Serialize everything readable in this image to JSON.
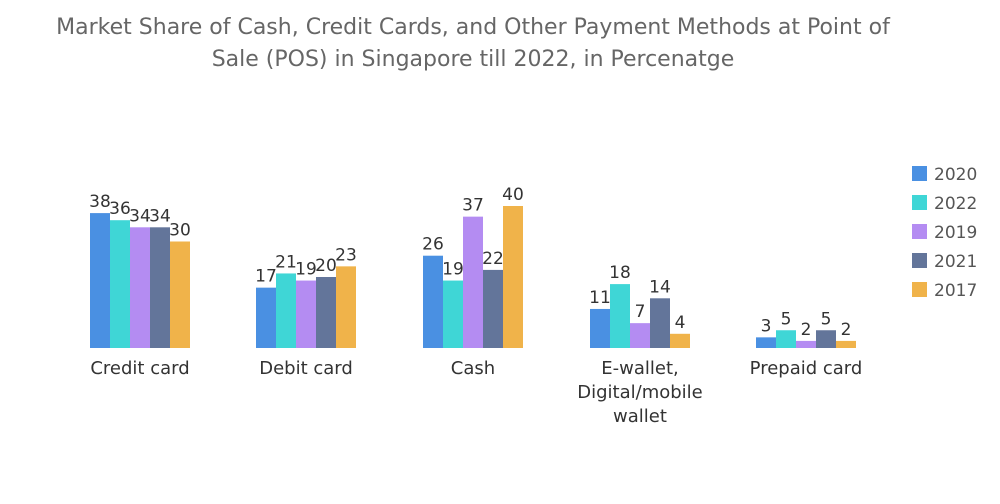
{
  "chart_data": {
    "type": "bar",
    "title": "Market Share of Cash, Credit Cards, and Other Payment Methods at Point of Sale (POS) in Singapore till 2022, in Percenatge",
    "title_lines": [
      "Market Share of Cash, Credit Cards, and Other Payment Methods at Point of",
      "Sale (POS) in Singapore till 2022, in Percenatge"
    ],
    "categories": [
      [
        "Credit card"
      ],
      [
        "Debit card"
      ],
      [
        "Cash"
      ],
      [
        "E-wallet,",
        "Digital/mobile",
        "wallet"
      ],
      [
        "Prepaid card"
      ]
    ],
    "series": [
      {
        "name": "2020",
        "color": "#4a90e2",
        "values": [
          38,
          17,
          26,
          11,
          3
        ]
      },
      {
        "name": "2022",
        "color": "#3fd6d6",
        "values": [
          36,
          21,
          19,
          18,
          5
        ]
      },
      {
        "name": "2019",
        "color": "#b48cf2",
        "values": [
          34,
          19,
          37,
          7,
          2
        ]
      },
      {
        "name": "2021",
        "color": "#63759a",
        "values": [
          34,
          20,
          22,
          14,
          5
        ]
      },
      {
        "name": "2017",
        "color": "#f0b34a",
        "values": [
          30,
          23,
          40,
          4,
          2
        ]
      }
    ],
    "ylim": [
      0,
      40
    ],
    "xlabel": "",
    "ylabel": "",
    "legend_position": "right",
    "grid": false
  }
}
